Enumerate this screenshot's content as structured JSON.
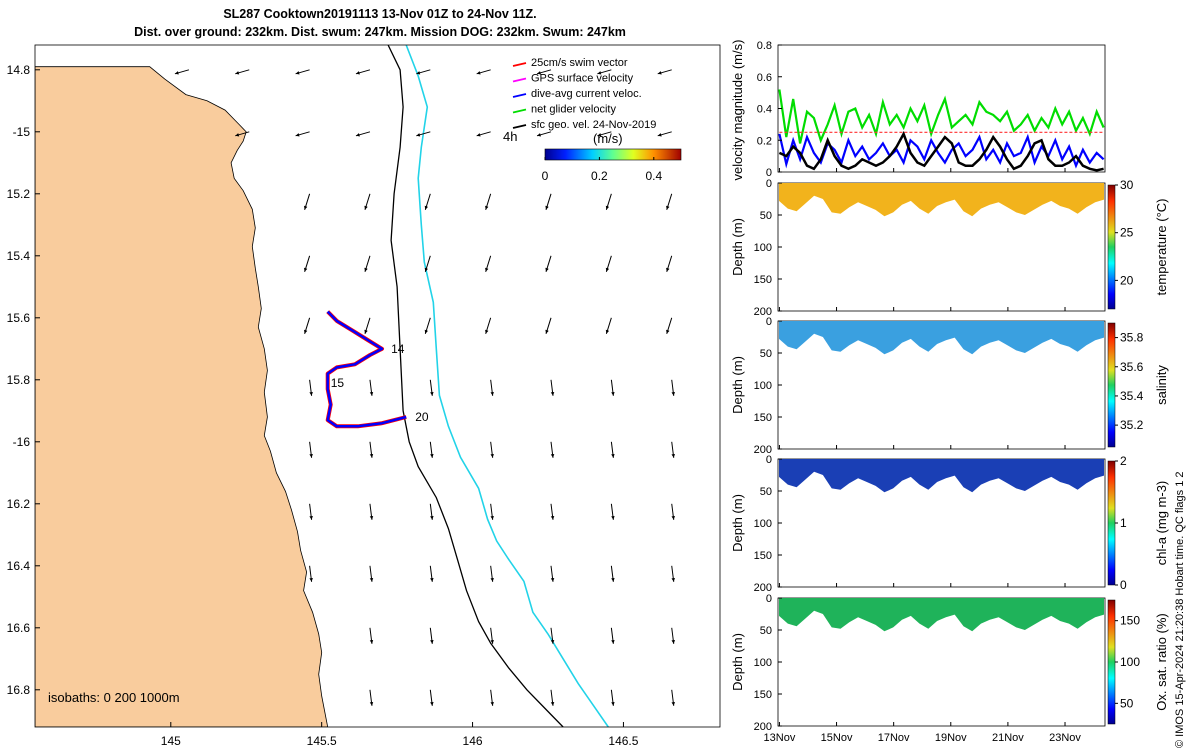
{
  "title": {
    "line1": "SL287 Cooktown20191113 13-Nov 01Z to 24-Nov 11Z.",
    "line2": "Dist. over ground: 232km. Dist. swum: 247km. Mission DOG: 232km. Swum: 247km"
  },
  "colors": {
    "land": "#f9cc9d",
    "coast_line": "#000000",
    "isobath_200": "#000000",
    "isobath_1000": "#22d3e8",
    "track_red": "#ff0000",
    "track_blue": "#0000ff",
    "swim_vector": "#ff0000",
    "gps_velocity": "#ff00ff",
    "dive_avg": "#0000ff",
    "net_glider": "#00dd00",
    "geo_vector": "#000000",
    "temperature_fill": "#f2b31c",
    "salinity_fill": "#3aa0e0",
    "chla_fill": "#1a3fb5",
    "oxygen_fill": "#1fb35a"
  },
  "chart_data": [
    {
      "type": "map",
      "id": "track-map",
      "xlim": [
        144.55,
        146.82
      ],
      "ylim": [
        -16.92,
        -14.72
      ],
      "x_ticks": [
        145,
        145.5,
        146,
        146.5
      ],
      "x_tick_labels": [
        "145",
        "145.5",
        "146",
        "146.5"
      ],
      "y_ticks": [
        -14.8,
        -15.0,
        -15.2,
        -15.4,
        -15.6,
        -15.8,
        -16.0,
        -16.2,
        -16.4,
        -16.6,
        -16.8
      ],
      "y_tick_labels": [
        "14.8",
        "-15",
        "15.2",
        "15.4",
        "15.6",
        "15.8",
        "-16",
        "16.2",
        "16.4",
        "16.6",
        "16.8"
      ],
      "isobath_note": "isobaths: 0   200  1000m",
      "legend": [
        {
          "label": "25cm/s swim vector",
          "color": "#ff0000"
        },
        {
          "label": "GPS surface velocity",
          "color": "#ff00ff"
        },
        {
          "label": "dive-avg current veloc.",
          "color": "#0000ff"
        },
        {
          "label": "net glider velocity",
          "color": "#00dd00"
        },
        {
          "label": "sfc geo. vel. 24-Nov-2019",
          "color": "#000000"
        }
      ],
      "time_marker": "4h",
      "colorbar": {
        "label": "(m/s)",
        "range": [
          0,
          0.5
        ],
        "ticks": [
          "0",
          "0.2",
          "0.4"
        ]
      },
      "coastline": [
        [
          144.55,
          -14.79
        ],
        [
          144.93,
          -14.79
        ],
        [
          144.98,
          -14.83
        ],
        [
          145.05,
          -14.88
        ],
        [
          145.12,
          -14.9
        ],
        [
          145.18,
          -14.93
        ],
        [
          145.22,
          -14.97
        ],
        [
          145.25,
          -15.0
        ],
        [
          145.24,
          -15.03
        ],
        [
          145.22,
          -15.06
        ],
        [
          145.2,
          -15.1
        ],
        [
          145.21,
          -15.15
        ],
        [
          145.24,
          -15.19
        ],
        [
          145.27,
          -15.25
        ],
        [
          145.28,
          -15.31
        ],
        [
          145.27,
          -15.37
        ],
        [
          145.28,
          -15.44
        ],
        [
          145.29,
          -15.5
        ],
        [
          145.3,
          -15.57
        ],
        [
          145.29,
          -15.63
        ],
        [
          145.31,
          -15.7
        ],
        [
          145.32,
          -15.77
        ],
        [
          145.31,
          -15.84
        ],
        [
          145.32,
          -15.92
        ],
        [
          145.31,
          -15.98
        ],
        [
          145.33,
          -16.03
        ],
        [
          145.35,
          -16.1
        ],
        [
          145.38,
          -16.16
        ],
        [
          145.4,
          -16.22
        ],
        [
          145.42,
          -16.29
        ],
        [
          145.43,
          -16.35
        ],
        [
          145.45,
          -16.42
        ],
        [
          145.44,
          -16.48
        ],
        [
          145.47,
          -16.55
        ],
        [
          145.49,
          -16.62
        ],
        [
          145.5,
          -16.68
        ],
        [
          145.49,
          -16.75
        ],
        [
          145.5,
          -16.82
        ],
        [
          145.52,
          -16.92
        ],
        [
          144.55,
          -16.92
        ]
      ],
      "isobath_200": [
        [
          145.72,
          -14.72
        ],
        [
          145.76,
          -14.8
        ],
        [
          145.77,
          -14.92
        ],
        [
          145.76,
          -15.05
        ],
        [
          145.74,
          -15.2
        ],
        [
          145.73,
          -15.35
        ],
        [
          145.75,
          -15.5
        ],
        [
          145.76,
          -15.7
        ],
        [
          145.77,
          -15.9
        ],
        [
          145.79,
          -16.0
        ],
        [
          145.82,
          -16.08
        ],
        [
          145.88,
          -16.18
        ],
        [
          145.92,
          -16.28
        ],
        [
          145.95,
          -16.38
        ],
        [
          145.98,
          -16.48
        ],
        [
          146.02,
          -16.58
        ],
        [
          146.06,
          -16.65
        ],
        [
          146.12,
          -16.73
        ],
        [
          146.18,
          -16.8
        ],
        [
          146.25,
          -16.87
        ],
        [
          146.3,
          -16.92
        ]
      ],
      "isobath_1000": [
        [
          145.78,
          -14.72
        ],
        [
          145.82,
          -14.82
        ],
        [
          145.85,
          -14.92
        ],
        [
          145.83,
          -15.05
        ],
        [
          145.82,
          -15.15
        ],
        [
          145.83,
          -15.3
        ],
        [
          145.84,
          -15.42
        ],
        [
          145.87,
          -15.55
        ],
        [
          145.88,
          -15.7
        ],
        [
          145.89,
          -15.85
        ],
        [
          145.92,
          -15.95
        ],
        [
          145.96,
          -16.05
        ],
        [
          146.02,
          -16.15
        ],
        [
          146.05,
          -16.25
        ],
        [
          146.08,
          -16.32
        ],
        [
          146.12,
          -16.38
        ],
        [
          146.17,
          -16.45
        ],
        [
          146.2,
          -16.55
        ],
        [
          146.25,
          -16.62
        ],
        [
          146.3,
          -16.7
        ],
        [
          146.35,
          -16.78
        ],
        [
          146.4,
          -16.85
        ],
        [
          146.45,
          -16.92
        ]
      ],
      "track": [
        [
          145.52,
          -15.58
        ],
        [
          145.55,
          -15.61
        ],
        [
          145.6,
          -15.64
        ],
        [
          145.65,
          -15.67
        ],
        [
          145.7,
          -15.7
        ],
        [
          145.66,
          -15.72
        ],
        [
          145.61,
          -15.75
        ],
        [
          145.55,
          -15.76
        ],
        [
          145.52,
          -15.78
        ],
        [
          145.52,
          -15.83
        ],
        [
          145.53,
          -15.88
        ],
        [
          145.52,
          -15.93
        ],
        [
          145.55,
          -15.95
        ],
        [
          145.62,
          -15.95
        ],
        [
          145.7,
          -15.94
        ],
        [
          145.78,
          -15.92
        ]
      ],
      "track_labels": [
        {
          "text": "14",
          "lon": 145.73,
          "lat": -15.7
        },
        {
          "text": "15",
          "lon": 145.53,
          "lat": -15.81
        },
        {
          "text": "20",
          "lon": 145.81,
          "lat": -15.92
        }
      ]
    },
    {
      "type": "line",
      "id": "velocity-magnitude",
      "ylabel": "velocity magnitude (m/s)",
      "ylim": [
        0,
        0.8
      ],
      "y_ticks": [
        "0",
        "0.2",
        "0.4",
        "0.6",
        "0.8"
      ],
      "xlim": [
        12.95,
        24.4
      ],
      "series": [
        {
          "color": "#00dd00",
          "values": [
            0.52,
            0.22,
            0.46,
            0.18,
            0.38,
            0.34,
            0.2,
            0.3,
            0.42,
            0.24,
            0.38,
            0.4,
            0.28,
            0.36,
            0.24,
            0.44,
            0.3,
            0.36,
            0.28,
            0.4,
            0.32,
            0.42,
            0.24,
            0.36,
            0.46,
            0.28,
            0.32,
            0.36,
            0.3,
            0.44,
            0.38,
            0.36,
            0.32,
            0.38,
            0.26,
            0.3,
            0.36,
            0.26,
            0.34,
            0.28,
            0.4,
            0.3,
            0.38,
            0.26,
            0.34,
            0.24,
            0.38,
            0.28
          ]
        },
        {
          "color": "#0000ff",
          "values": [
            0.24,
            0.05,
            0.2,
            0.08,
            0.22,
            0.12,
            0.06,
            0.18,
            0.14,
            0.06,
            0.2,
            0.1,
            0.16,
            0.08,
            0.12,
            0.18,
            0.1,
            0.14,
            0.06,
            0.2,
            0.16,
            0.08,
            0.2,
            0.12,
            0.06,
            0.14,
            0.18,
            0.1,
            0.14,
            0.22,
            0.08,
            0.14,
            0.06,
            0.18,
            0.1,
            0.12,
            0.22,
            0.06,
            0.16,
            0.1,
            0.2,
            0.08,
            0.16,
            0.04,
            0.14,
            0.06,
            0.12,
            0.08
          ]
        },
        {
          "color": "#000000",
          "values": [
            0.12,
            0.1,
            0.16,
            0.12,
            0.04,
            0.02,
            0.08,
            0.2,
            0.1,
            0.04,
            0.02,
            0.04,
            0.08,
            0.06,
            0.04,
            0.06,
            0.1,
            0.16,
            0.24,
            0.12,
            0.06,
            0.04,
            0.1,
            0.16,
            0.22,
            0.18,
            0.06,
            0.04,
            0.04,
            0.08,
            0.14,
            0.22,
            0.16,
            0.08,
            0.02,
            0.04,
            0.1,
            0.18,
            0.2,
            0.08,
            0.04,
            0.04,
            0.06,
            0.1,
            0.04,
            0.02,
            0.01,
            0.02
          ]
        },
        {
          "color": "#ff3030",
          "values": [
            0.25,
            0.25,
            0.25,
            0.25,
            0.25,
            0.25,
            0.25,
            0.25,
            0.25,
            0.25,
            0.25,
            0.25,
            0.25,
            0.25,
            0.25,
            0.25,
            0.25,
            0.25,
            0.25,
            0.25,
            0.25,
            0.25,
            0.25,
            0.25,
            0.25,
            0.25,
            0.25,
            0.25,
            0.25,
            0.25,
            0.25,
            0.25,
            0.25,
            0.25,
            0.25,
            0.25,
            0.25,
            0.25,
            0.25,
            0.25,
            0.25,
            0.25,
            0.25,
            0.25,
            0.25,
            0.25,
            0.25,
            0.25
          ]
        }
      ]
    },
    {
      "type": "heatmap",
      "id": "temperature",
      "variable": "temperature",
      "ylabel": "Depth (m)",
      "clabel": "temperature (°C)",
      "ylim": [
        0,
        200
      ],
      "y_ticks": [
        "0",
        "50",
        "100",
        "150",
        "200"
      ],
      "crange": [
        17,
        30
      ],
      "cticks": [
        "20",
        "25",
        "30"
      ],
      "cticks_values": [
        20,
        25,
        30
      ],
      "fill": "#f2b31c",
      "colormap": "jet",
      "profile_bottom_m": [
        28,
        40,
        44,
        32,
        20,
        25,
        46,
        48,
        38,
        30,
        36,
        42,
        52,
        46,
        34,
        28,
        40,
        48,
        36,
        30,
        26,
        44,
        52,
        40,
        34,
        30,
        38,
        46,
        50,
        42,
        34,
        28,
        36,
        40,
        48,
        38,
        30,
        26
      ]
    },
    {
      "type": "heatmap",
      "id": "salinity",
      "variable": "salinity",
      "ylabel": "Depth (m)",
      "clabel": "salinity",
      "ylim": [
        0,
        200
      ],
      "y_ticks": [
        "0",
        "50",
        "100",
        "150",
        "200"
      ],
      "crange": [
        35.05,
        35.9
      ],
      "cticks": [
        "35.2",
        "35.4",
        "35.6",
        "35.8"
      ],
      "cticks_values": [
        35.2,
        35.4,
        35.6,
        35.8
      ],
      "fill": "#3aa0e0",
      "colormap": "jet",
      "profile_bottom_m": [
        28,
        40,
        44,
        32,
        20,
        25,
        46,
        48,
        38,
        30,
        36,
        42,
        52,
        46,
        34,
        28,
        40,
        48,
        36,
        30,
        26,
        44,
        52,
        40,
        34,
        30,
        38,
        46,
        50,
        42,
        34,
        28,
        36,
        40,
        48,
        38,
        30,
        26
      ]
    },
    {
      "type": "heatmap",
      "id": "chla",
      "variable": "chl-a",
      "ylabel": "Depth (m)",
      "clabel": "chl-a (mg m-3)",
      "ylim": [
        0,
        200
      ],
      "y_ticks": [
        "0",
        "50",
        "100",
        "150",
        "200"
      ],
      "crange": [
        0,
        2
      ],
      "cticks": [
        "0",
        "1",
        "2"
      ],
      "cticks_values": [
        0,
        1,
        2
      ],
      "fill": "#1a3fb5",
      "colormap": "jet",
      "profile_bottom_m": [
        28,
        40,
        44,
        32,
        20,
        25,
        46,
        48,
        38,
        30,
        36,
        42,
        52,
        46,
        34,
        28,
        40,
        48,
        36,
        30,
        26,
        44,
        52,
        40,
        34,
        30,
        38,
        46,
        50,
        42,
        34,
        28,
        36,
        40,
        48,
        38,
        30,
        26
      ]
    },
    {
      "type": "heatmap",
      "id": "oxygen",
      "variable": "oxygen saturation",
      "ylabel": "Depth (m)",
      "clabel": "Ox. sat. ratio (%)",
      "ylim": [
        0,
        200
      ],
      "y_ticks": [
        "0",
        "50",
        "100",
        "150",
        "200"
      ],
      "crange": [
        25,
        175
      ],
      "cticks": [
        "50",
        "100",
        "150"
      ],
      "cticks_values": [
        50,
        100,
        150
      ],
      "fill": "#1fb35a",
      "colormap": "jet",
      "profile_bottom_m": [
        28,
        40,
        44,
        32,
        20,
        25,
        46,
        48,
        38,
        30,
        36,
        42,
        52,
        46,
        34,
        28,
        40,
        48,
        36,
        30,
        26,
        44,
        52,
        40,
        34,
        30,
        38,
        46,
        50,
        42,
        34,
        28,
        36,
        40,
        48,
        38,
        30,
        26
      ]
    }
  ],
  "time_axis": {
    "xlim": [
      12.95,
      24.4
    ],
    "ticks": [
      13,
      15,
      17,
      19,
      21,
      23
    ],
    "labels": [
      "13Nov",
      "15Nov",
      "17Nov",
      "19Nov",
      "21Nov",
      "23Nov"
    ]
  },
  "credit": "© IMOS 15-Apr-2024 21:20:38 Hobart time. QC flags 1  2"
}
